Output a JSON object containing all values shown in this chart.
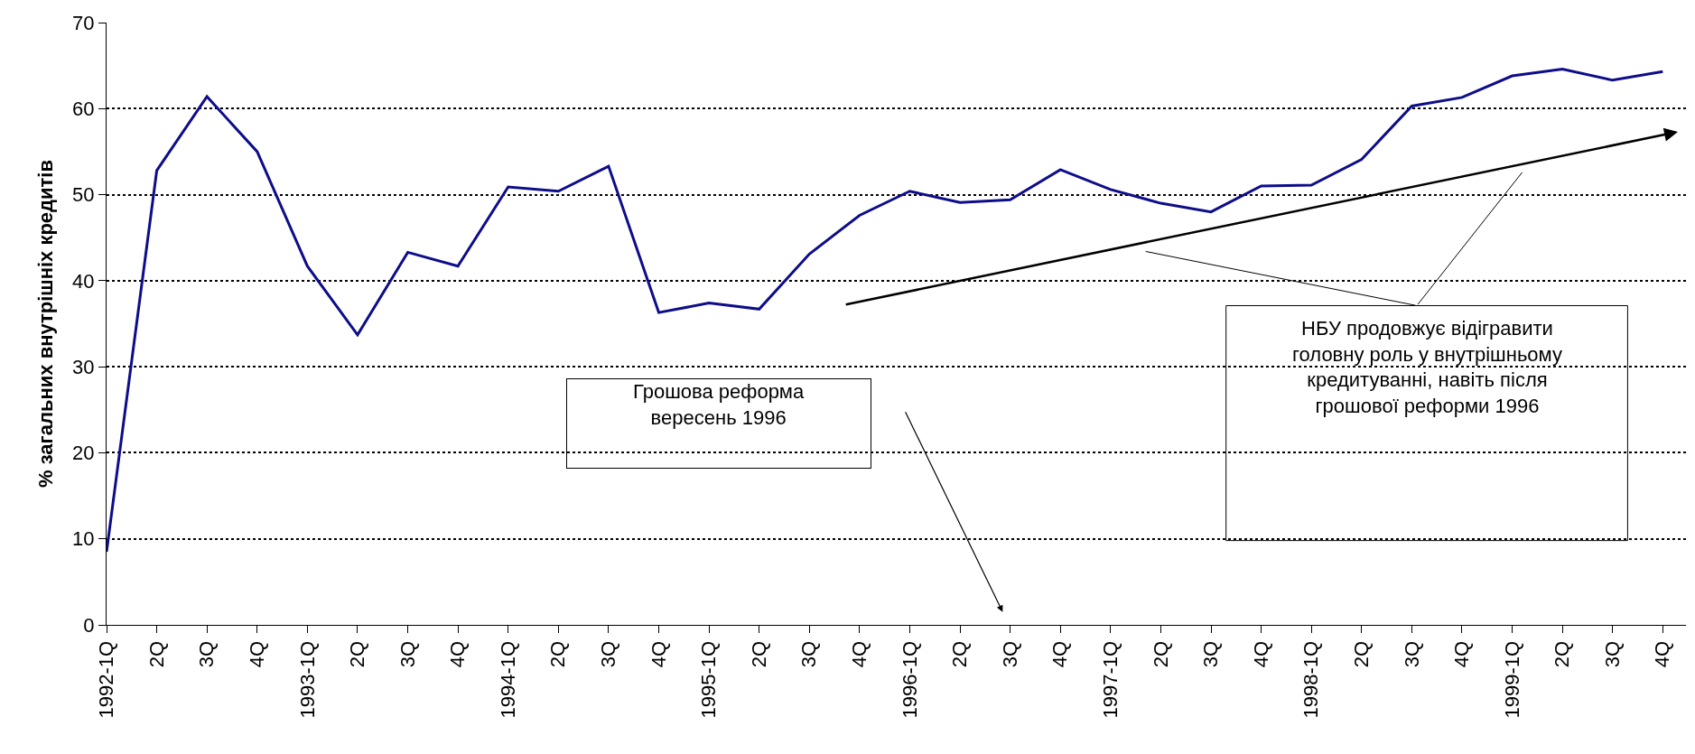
{
  "chart_data": {
    "type": "line",
    "ylabel": "% загальних внутрішніх кредитів",
    "categories": [
      "1992-1Q",
      "2Q",
      "3Q",
      "4Q",
      "1993-1Q",
      "2Q",
      "3Q",
      "4Q",
      "1994-1Q",
      "2Q",
      "3Q",
      "4Q",
      "1995-1Q",
      "2Q",
      "3Q",
      "4Q",
      "1996-1Q",
      "2Q",
      "3Q",
      "4Q",
      "1997-1Q",
      "2Q",
      "3Q",
      "4Q",
      "1998-1Q",
      "2Q",
      "3Q",
      "4Q",
      "1999-1Q",
      "2Q",
      "3Q",
      "4Q"
    ],
    "series": [
      {
        "color": "#0d0d8a",
        "values": [
          8.5,
          52.8,
          61.4,
          55.0,
          41.7,
          33.7,
          43.3,
          41.7,
          50.9,
          50.4,
          53.3,
          36.3,
          37.4,
          36.7,
          43.1,
          47.6,
          50.4,
          49.1,
          49.4,
          52.9,
          50.6,
          49.0,
          48.0,
          51.0,
          51.1,
          54.1,
          60.3,
          61.3,
          63.8,
          64.6,
          63.3,
          64.3
        ]
      }
    ],
    "ylim": [
      0,
      70
    ],
    "yticks": [
      0,
      10,
      20,
      30,
      40,
      50,
      60,
      70
    ],
    "grid": "y",
    "legend": false,
    "marker": "none",
    "line_style": "solid",
    "annotations": [
      "Грошова реформа\nвересень 1996",
      "НБУ продовжує відігравити\nголовну роль у внутрішньому\nкредитуванні, навіть після\nгрошової реформи 1996"
    ]
  }
}
